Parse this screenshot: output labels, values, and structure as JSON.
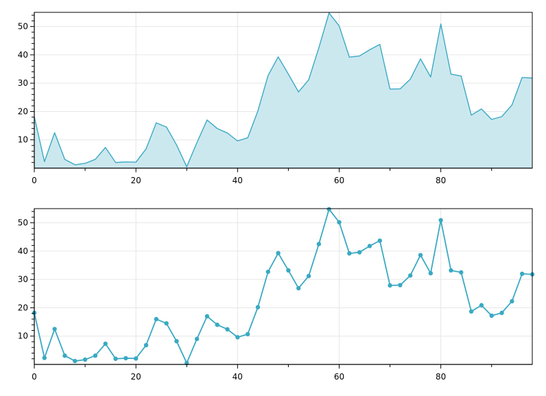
{
  "chart_data": [
    {
      "type": "area",
      "color": "#3aa9c3",
      "fill_color": "#cce8ef",
      "grid": true,
      "xlim": [
        0,
        98
      ],
      "ylim": [
        0,
        55
      ],
      "xticks": [
        0,
        20,
        40,
        60,
        80
      ],
      "yticks": [
        10,
        20,
        30,
        40,
        50
      ],
      "x": [
        0,
        2,
        4,
        6,
        8,
        10,
        12,
        14,
        16,
        18,
        20,
        22,
        24,
        26,
        28,
        30,
        32,
        34,
        36,
        38,
        40,
        42,
        44,
        46,
        48,
        50,
        52,
        54,
        56,
        58,
        60,
        62,
        64,
        66,
        68,
        70,
        72,
        74,
        76,
        78,
        80,
        82,
        84,
        86,
        88,
        90,
        92,
        94,
        96,
        98
      ],
      "y": [
        18.2,
        2.3,
        12.5,
        3.1,
        1.2,
        1.7,
        3.1,
        7.3,
        2.0,
        2.2,
        2.1,
        6.8,
        16.0,
        14.5,
        8.2,
        0.5,
        9.0,
        17.0,
        14.0,
        12.4,
        9.6,
        10.7,
        20.2,
        32.7,
        39.3,
        33.2,
        26.9,
        31.2,
        42.5,
        54.8,
        50.2,
        39.2,
        39.6,
        41.8,
        43.7,
        27.9,
        28.0,
        31.4,
        38.6,
        32.2,
        50.9,
        33.2,
        32.5,
        18.7,
        20.9,
        17.2,
        18.2,
        22.3,
        32.0,
        31.8
      ]
    },
    {
      "type": "line",
      "color": "#3aa9c3",
      "markers": true,
      "grid": true,
      "xlim": [
        0,
        98
      ],
      "ylim": [
        0,
        55
      ],
      "xticks": [
        0,
        20,
        40,
        60,
        80
      ],
      "yticks": [
        10,
        20,
        30,
        40,
        50
      ],
      "x": [
        0,
        2,
        4,
        6,
        8,
        10,
        12,
        14,
        16,
        18,
        20,
        22,
        24,
        26,
        28,
        30,
        32,
        34,
        36,
        38,
        40,
        42,
        44,
        46,
        48,
        50,
        52,
        54,
        56,
        58,
        60,
        62,
        64,
        66,
        68,
        70,
        72,
        74,
        76,
        78,
        80,
        82,
        84,
        86,
        88,
        90,
        92,
        94,
        96,
        98
      ],
      "y": [
        18.2,
        2.3,
        12.5,
        3.1,
        1.2,
        1.7,
        3.1,
        7.3,
        2.0,
        2.2,
        2.1,
        6.8,
        16.0,
        14.5,
        8.2,
        0.5,
        9.0,
        17.0,
        14.0,
        12.4,
        9.6,
        10.7,
        20.2,
        32.7,
        39.3,
        33.2,
        26.9,
        31.2,
        42.5,
        54.8,
        50.2,
        39.2,
        39.6,
        41.8,
        43.7,
        27.9,
        28.0,
        31.4,
        38.6,
        32.2,
        50.9,
        33.2,
        32.5,
        18.7,
        20.9,
        17.2,
        18.2,
        22.3,
        32.0,
        31.8
      ]
    }
  ]
}
